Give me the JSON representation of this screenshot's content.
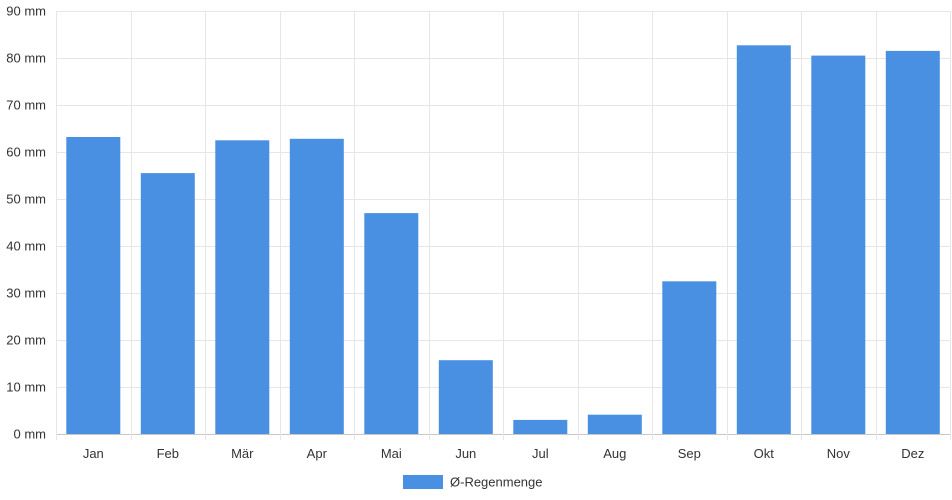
{
  "chart_data": {
    "type": "bar",
    "categories": [
      "Jan",
      "Feb",
      "Mär",
      "Apr",
      "Mai",
      "Jun",
      "Jul",
      "Aug",
      "Sep",
      "Okt",
      "Nov",
      "Dez"
    ],
    "series": [
      {
        "name": "Ø-Regenmenge",
        "values": [
          63.2,
          55.5,
          62.5,
          62.8,
          47.0,
          15.7,
          3.0,
          4.1,
          32.5,
          82.7,
          80.5,
          81.5
        ],
        "color": "#4a90e2"
      }
    ],
    "y_unit_suffix": " mm",
    "ylim": [
      0,
      90
    ],
    "y_ticks": [
      0,
      10,
      20,
      30,
      40,
      50,
      60,
      70,
      80,
      90
    ],
    "grid": true,
    "legend_position": "bottom-center",
    "title": "",
    "xlabel": "",
    "ylabel": ""
  }
}
